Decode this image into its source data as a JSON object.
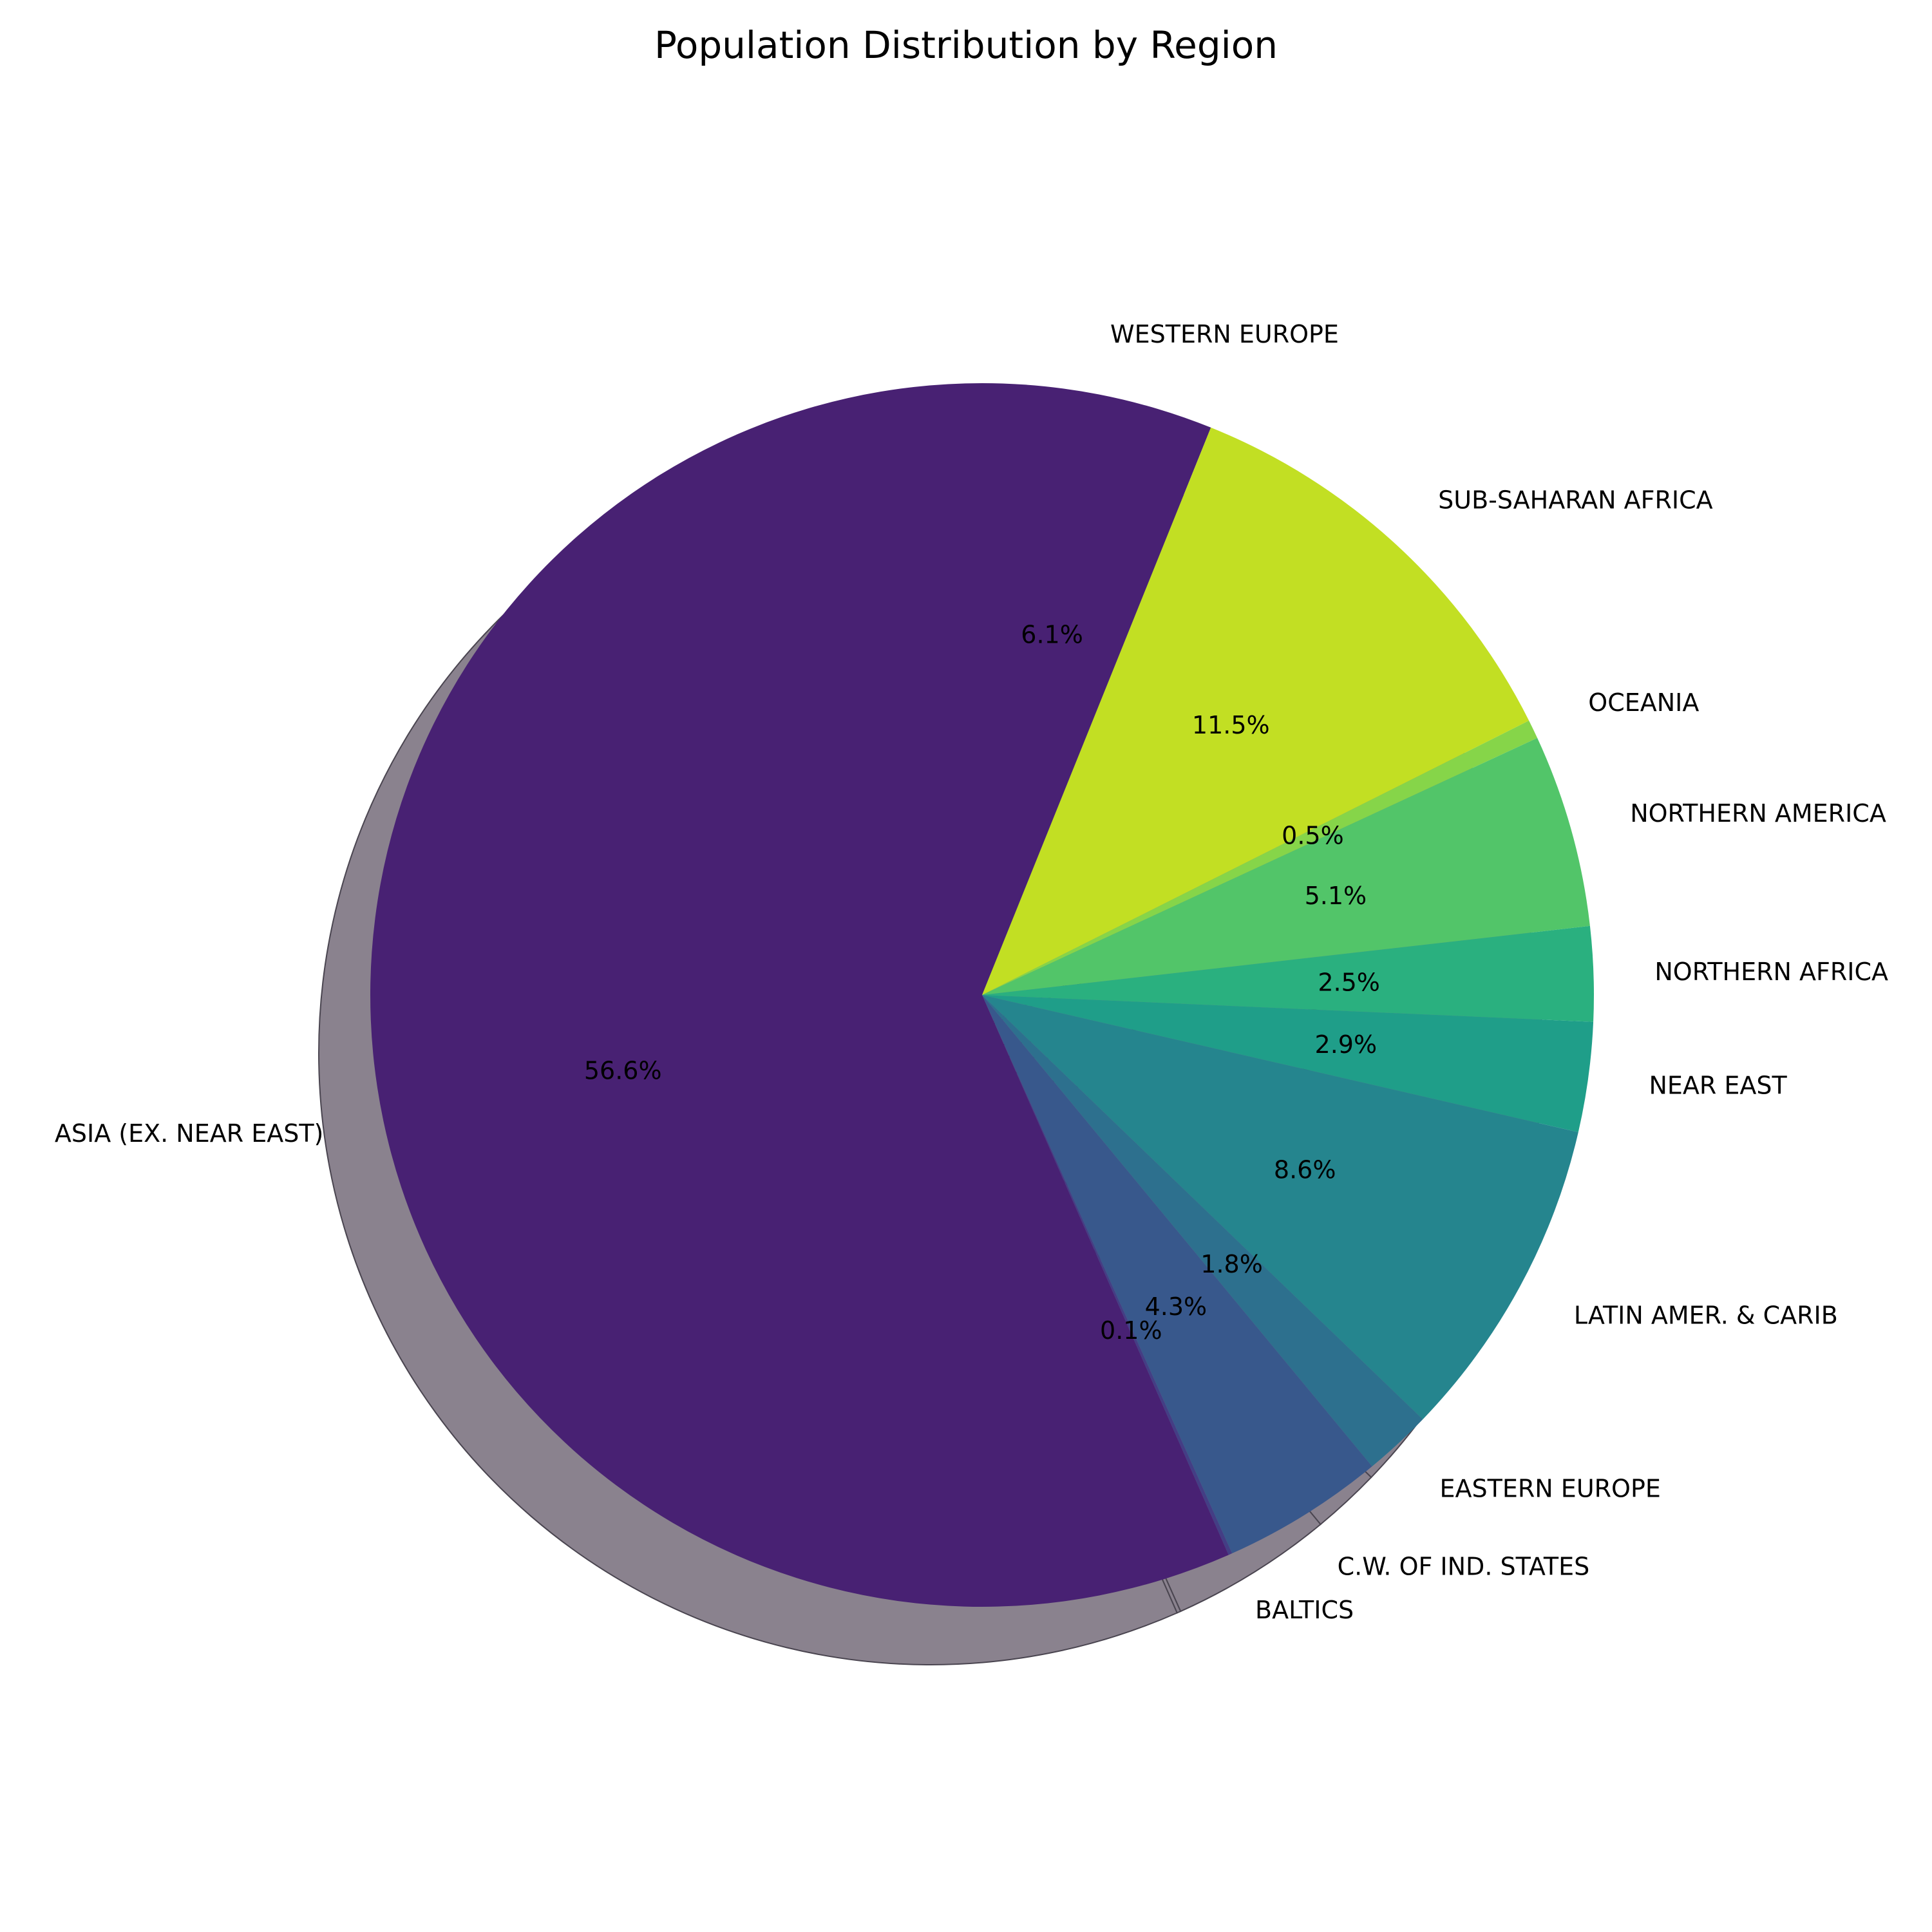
{
  "chart_data": {
    "type": "pie",
    "title": "Population Distribution by Region",
    "start_angle_deg": 90,
    "direction": "clockwise",
    "shadow": true,
    "slices": [
      {
        "label": "WESTERN EUROPE",
        "percent": 6.1,
        "pct_label": "6.1%",
        "color": "#482173"
      },
      {
        "label": "SUB-SAHARAN AFRICA",
        "percent": 11.5,
        "pct_label": "11.5%",
        "color": "#c2df23"
      },
      {
        "label": "OCEANIA",
        "percent": 0.5,
        "pct_label": "0.5%",
        "color": "#86d549"
      },
      {
        "label": "NORTHERN AMERICA",
        "percent": 5.1,
        "pct_label": "5.1%",
        "color": "#52c569"
      },
      {
        "label": "NORTHERN AFRICA",
        "percent": 2.5,
        "pct_label": "2.5%",
        "color": "#2ab07f"
      },
      {
        "label": "NEAR EAST",
        "percent": 2.9,
        "pct_label": "2.9%",
        "color": "#1f9e89"
      },
      {
        "label": "LATIN AMER. & CARIB",
        "percent": 8.6,
        "pct_label": "8.6%",
        "color": "#25858e"
      },
      {
        "label": "EASTERN EUROPE",
        "percent": 1.8,
        "pct_label": "1.8%",
        "color": "#2d708e"
      },
      {
        "label": "C.W. OF IND. STATES",
        "percent": 4.3,
        "pct_label": "4.3%",
        "color": "#38588c"
      },
      {
        "label": "BALTICS",
        "percent": 0.1,
        "pct_label": "0.1%",
        "color": "#433e85"
      },
      {
        "label": "ASIA (EX. NEAR EAST)",
        "percent": 56.6,
        "pct_label": "56.6%",
        "color": "#482173"
      }
    ]
  }
}
